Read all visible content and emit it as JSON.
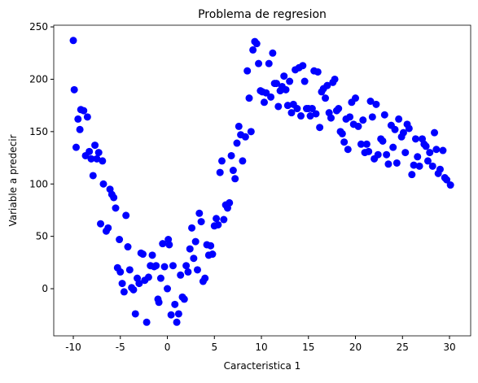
{
  "chart_data": {
    "type": "scatter",
    "title": "Problema de regresion",
    "x_label": "Caracteristica 1",
    "y_label": "Variable a predecir",
    "color": "#0000ff",
    "x": [
      -10,
      -9.9,
      -9.7,
      -9.5,
      -9.3,
      -9.2,
      -8.9,
      -8.7,
      -8.5,
      -8.3,
      -8.1,
      -7.9,
      -7.7,
      -7.5,
      -7.3,
      -7.1,
      -6.9,
      -6.8,
      -6.5,
      -6.3,
      -6.1,
      -5.9,
      -5.7,
      -5.5,
      -5.3,
      -5.1,
      -5,
      -4.8,
      -4.6,
      -4.4,
      -4.2,
      -4,
      -3.8,
      -3.6,
      -3.4,
      -3.2,
      -3,
      -2.8,
      -2.6,
      -2.4,
      -2.2,
      -2,
      -1.8,
      -1.6,
      -1.4,
      -1.2,
      -1,
      -0.9,
      -0.7,
      -0.5,
      -0.3,
      0,
      0.1,
      0.2,
      0.4,
      0.6,
      0.8,
      1,
      1.2,
      1.4,
      1.6,
      1.8,
      2,
      2.2,
      2.4,
      2.6,
      2.8,
      3,
      3.2,
      3.4,
      3.6,
      3.8,
      4,
      4.2,
      4.4,
      4.6,
      4.8,
      5,
      5.2,
      5.4,
      5.6,
      5.8,
      6,
      6.2,
      6.4,
      6.6,
      6.8,
      7,
      7.2,
      7.4,
      7.6,
      7.8,
      8,
      8.3,
      8.5,
      8.7,
      8.9,
      9.1,
      9.3,
      9.5,
      9.7,
      9.9,
      10.1,
      10.3,
      10.5,
      10.8,
      11,
      11.2,
      11.4,
      11.6,
      11.8,
      12,
      12.2,
      12.4,
      12.6,
      12.8,
      13,
      13.2,
      13.4,
      13.6,
      13.8,
      14,
      14.2,
      14.4,
      14.6,
      14.8,
      15,
      15.2,
      15.4,
      15.6,
      15.8,
      16,
      16.2,
      16.4,
      16.6,
      16.8,
      17,
      17.2,
      17.4,
      17.6,
      17.8,
      18,
      18.2,
      18.4,
      18.6,
      18.8,
      19,
      19.2,
      19.4,
      19.6,
      19.8,
      20,
      20.3,
      20.6,
      20.8,
      21,
      21.2,
      21.4,
      21.6,
      21.8,
      22,
      22.2,
      22.4,
      22.7,
      22.9,
      23.1,
      23.3,
      23.5,
      23.8,
      24,
      24.2,
      24.4,
      24.6,
      24.9,
      25.1,
      25.3,
      25.5,
      25.7,
      26,
      26.2,
      26.4,
      26.6,
      26.8,
      27.1,
      27.3,
      27.5,
      27.7,
      27.9,
      28.2,
      28.4,
      28.6,
      28.8,
      29,
      29.3,
      29.5,
      29.7,
      30.1
    ],
    "values": [
      237,
      190,
      135,
      162,
      152,
      171,
      170,
      127,
      164,
      131,
      124,
      108,
      137,
      124,
      130,
      62,
      122,
      100,
      55,
      58,
      95,
      90,
      87,
      77,
      20,
      47,
      16,
      5,
      -3,
      70,
      40,
      18,
      1,
      -1,
      -24,
      10,
      5,
      34,
      33,
      8,
      -32,
      11,
      22,
      32,
      21,
      22,
      -10,
      -13,
      10,
      43,
      21,
      0,
      47,
      42,
      -25,
      22,
      -15,
      -32,
      -24,
      13,
      -8,
      -10,
      22,
      16,
      38,
      58,
      29,
      45,
      18,
      72,
      64,
      7,
      10,
      42,
      32,
      41,
      33,
      60,
      67,
      61,
      111,
      122,
      66,
      80,
      77,
      82,
      127,
      113,
      105,
      139,
      155,
      147,
      122,
      145,
      208,
      182,
      150,
      228,
      236,
      234,
      215,
      189,
      188,
      178,
      187,
      215,
      183,
      225,
      196,
      196,
      174,
      189,
      193,
      203,
      190,
      175,
      198,
      168,
      176,
      209,
      172,
      211,
      165,
      213,
      198,
      172,
      172,
      165,
      172,
      208,
      167,
      207,
      154,
      188,
      191,
      182,
      194,
      168,
      163,
      197,
      200,
      170,
      172,
      150,
      148,
      140,
      162,
      133,
      164,
      178,
      157,
      182,
      155,
      138,
      161,
      130,
      138,
      131,
      179,
      164,
      124,
      176,
      128,
      143,
      141,
      166,
      128,
      119,
      156,
      135,
      152,
      120,
      162,
      145,
      149,
      130,
      157,
      153,
      109,
      118,
      143,
      126,
      117,
      143,
      138,
      136,
      122,
      130,
      117,
      149,
      133,
      110,
      114,
      132,
      106,
      104,
      99
    ],
    "xlim": [
      -12.08,
      32.25
    ],
    "ylim": [
      -45,
      251.6
    ],
    "xticks": [
      -10,
      -5,
      0,
      5,
      10,
      15,
      20,
      25,
      30
    ],
    "yticks": [
      0,
      50,
      100,
      150,
      200,
      250
    ]
  }
}
